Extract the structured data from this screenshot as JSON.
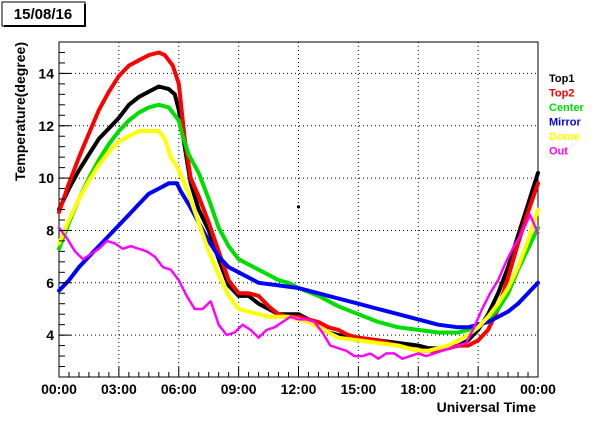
{
  "chart_data": {
    "type": "line",
    "title": "15/08/16",
    "xlabel": "Universal Time",
    "ylabel": "Temperature(degree)",
    "xlim": [
      0,
      24
    ],
    "ylim": [
      2.4,
      15.2
    ],
    "x_ticks": [
      {
        "value": 0,
        "label": "00:00"
      },
      {
        "value": 3,
        "label": "03:00"
      },
      {
        "value": 6,
        "label": "06:00"
      },
      {
        "value": 9,
        "label": "09:00"
      },
      {
        "value": 12,
        "label": "12:00"
      },
      {
        "value": 15,
        "label": "15:00"
      },
      {
        "value": 18,
        "label": "18:00"
      },
      {
        "value": 21,
        "label": "21:00"
      },
      {
        "value": 24,
        "label": "00:00"
      }
    ],
    "y_ticks": [
      {
        "value": 4,
        "label": "4"
      },
      {
        "value": 6,
        "label": "6"
      },
      {
        "value": 8,
        "label": "8"
      },
      {
        "value": 10,
        "label": "10"
      },
      {
        "value": 12,
        "label": "12"
      },
      {
        "value": 14,
        "label": "14"
      }
    ],
    "grid": true,
    "legend_position": "right",
    "series": [
      {
        "name": "Top1",
        "color": "#000000",
        "x": [
          0,
          0.5,
          1,
          1.5,
          2,
          2.5,
          3,
          3.5,
          4,
          4.5,
          5,
          5.5,
          5.8,
          6,
          6.3,
          6.6,
          7,
          7.5,
          8,
          8.5,
          9,
          9.5,
          10,
          10.5,
          11,
          11.5,
          12,
          12.5,
          13,
          13.5,
          14,
          15,
          16,
          17,
          18,
          18.5,
          19,
          19.5,
          20,
          20.5,
          21,
          21.5,
          22,
          22.5,
          23,
          23.5,
          24
        ],
        "y": [
          8.8,
          9.6,
          10.3,
          10.9,
          11.5,
          11.9,
          12.3,
          12.8,
          13.1,
          13.3,
          13.5,
          13.4,
          13.2,
          12.6,
          11.2,
          9.8,
          8.8,
          8.0,
          6.9,
          5.9,
          5.5,
          5.5,
          5.2,
          5.0,
          4.8,
          4.8,
          4.8,
          4.6,
          4.3,
          4.1,
          4.0,
          3.9,
          3.8,
          3.7,
          3.6,
          3.5,
          3.5,
          3.5,
          3.6,
          3.8,
          4.2,
          4.8,
          5.6,
          6.6,
          7.8,
          9.0,
          10.2
        ]
      },
      {
        "name": "Top2",
        "color": "#ff0000",
        "x": [
          0,
          0.5,
          1,
          1.5,
          2,
          2.5,
          3,
          3.5,
          4,
          4.5,
          5,
          5.3,
          5.7,
          6,
          6.3,
          6.6,
          7,
          7.5,
          8,
          8.5,
          9,
          9.5,
          10,
          10.5,
          11,
          11.5,
          12,
          12.5,
          13,
          13.5,
          14,
          14.5,
          15,
          16,
          17,
          17.5,
          18,
          18.5,
          19,
          19.5,
          20,
          20.5,
          21,
          21.5,
          22,
          22.5,
          23,
          23.5,
          24
        ],
        "y": [
          8.7,
          9.8,
          10.8,
          11.7,
          12.6,
          13.3,
          13.9,
          14.3,
          14.5,
          14.7,
          14.8,
          14.7,
          14.3,
          13.6,
          11.5,
          10.0,
          9.3,
          8.3,
          7.2,
          6.1,
          5.6,
          5.6,
          5.5,
          5.1,
          4.8,
          4.7,
          4.7,
          4.6,
          4.5,
          4.3,
          4.2,
          4.0,
          3.9,
          3.8,
          3.6,
          3.5,
          3.4,
          3.4,
          3.4,
          3.5,
          3.6,
          3.6,
          3.8,
          4.2,
          5.0,
          6.2,
          7.5,
          8.7,
          9.8
        ]
      },
      {
        "name": "Center",
        "color": "#00dd00",
        "x": [
          0,
          0.5,
          1,
          1.5,
          2,
          2.5,
          3,
          3.5,
          4,
          4.5,
          5,
          5.5,
          6,
          6.2,
          6.5,
          7,
          7.5,
          8,
          8.5,
          9,
          9.5,
          10,
          10.5,
          11,
          11.5,
          12,
          13,
          14,
          15,
          16,
          17,
          18,
          19,
          20,
          20.5,
          21,
          21.5,
          22,
          22.5,
          23,
          23.5,
          24
        ],
        "y": [
          7.3,
          8.3,
          9.2,
          10.0,
          10.7,
          11.3,
          11.8,
          12.2,
          12.5,
          12.7,
          12.8,
          12.7,
          12.2,
          11.6,
          10.9,
          10.2,
          9.2,
          8.1,
          7.4,
          6.9,
          6.7,
          6.5,
          6.3,
          6.1,
          6.0,
          5.8,
          5.5,
          5.1,
          4.8,
          4.5,
          4.3,
          4.2,
          4.1,
          4.1,
          4.2,
          4.3,
          4.6,
          5.0,
          5.6,
          6.5,
          7.3,
          8.1
        ]
      },
      {
        "name": "Mirror",
        "color": "#0000ff",
        "x": [
          0,
          0.5,
          1,
          1.5,
          2,
          2.5,
          3,
          3.5,
          4,
          4.5,
          5,
          5.5,
          5.9,
          6.1,
          6.5,
          7,
          7.5,
          8,
          8.5,
          9,
          9.5,
          10,
          11,
          12,
          13,
          14,
          15,
          16,
          17,
          18,
          19,
          20,
          20.5,
          21,
          21.5,
          22,
          22.5,
          23,
          23.5,
          24
        ],
        "y": [
          5.7,
          6.1,
          6.6,
          7.0,
          7.4,
          7.8,
          8.2,
          8.6,
          9.0,
          9.4,
          9.6,
          9.8,
          9.8,
          9.5,
          9.0,
          8.3,
          7.6,
          7.0,
          6.6,
          6.4,
          6.2,
          6.0,
          5.9,
          5.8,
          5.6,
          5.4,
          5.2,
          5.0,
          4.8,
          4.6,
          4.4,
          4.3,
          4.3,
          4.4,
          4.5,
          4.7,
          4.9,
          5.2,
          5.6,
          6.0
        ]
      },
      {
        "name": "Dome",
        "color": "#ffff00",
        "x": [
          0,
          0.5,
          1,
          1.5,
          2,
          2.5,
          3,
          3.5,
          4,
          4.5,
          5,
          5.3,
          5.6,
          6,
          6.5,
          7,
          7.5,
          8,
          8.5,
          9,
          9.5,
          10,
          10.5,
          11,
          11.5,
          12,
          12.5,
          13,
          13.5,
          14,
          15,
          16,
          17,
          17.5,
          18,
          18.5,
          19,
          19.5,
          20,
          20.5,
          21,
          21.5,
          22,
          22.5,
          23,
          23.5,
          24
        ],
        "y": [
          7.5,
          8.4,
          9.2,
          9.9,
          10.5,
          11.0,
          11.4,
          11.6,
          11.8,
          11.8,
          11.8,
          11.5,
          10.8,
          10.3,
          9.4,
          8.3,
          7.2,
          6.3,
          5.5,
          5.0,
          4.9,
          4.8,
          4.7,
          4.7,
          4.7,
          4.6,
          4.5,
          4.3,
          4.1,
          3.9,
          3.8,
          3.7,
          3.6,
          3.5,
          3.4,
          3.4,
          3.5,
          3.6,
          3.8,
          4.0,
          4.3,
          4.7,
          5.2,
          5.8,
          6.6,
          7.6,
          8.8
        ]
      },
      {
        "name": "Out",
        "color": "#ff00ff",
        "x": [
          0,
          0.4,
          0.8,
          1.2,
          1.6,
          2,
          2.4,
          2.8,
          3.2,
          3.6,
          4,
          4.4,
          4.8,
          5.2,
          5.6,
          6,
          6.4,
          6.8,
          7.2,
          7.6,
          8,
          8.4,
          8.8,
          9.2,
          9.6,
          10,
          10.4,
          10.8,
          11.2,
          11.6,
          12,
          12.4,
          12.8,
          13.2,
          13.6,
          14,
          14.4,
          14.8,
          15.2,
          15.6,
          16,
          16.4,
          16.8,
          17.2,
          17.6,
          18,
          18.4,
          18.8,
          19.2,
          19.6,
          20,
          20.4,
          20.8,
          21.2,
          21.6,
          22,
          22.4,
          22.8,
          23.2,
          23.6,
          24
        ],
        "y": [
          8.1,
          7.7,
          7.2,
          6.9,
          7.1,
          7.3,
          7.6,
          7.5,
          7.3,
          7.4,
          7.3,
          7.2,
          7.0,
          6.6,
          6.5,
          6.1,
          5.5,
          5.0,
          5.0,
          5.3,
          4.4,
          4.0,
          4.1,
          4.4,
          4.2,
          3.9,
          4.2,
          4.3,
          4.5,
          4.7,
          4.6,
          4.6,
          4.5,
          4.1,
          3.6,
          3.5,
          3.4,
          3.2,
          3.2,
          3.3,
          3.1,
          3.3,
          3.3,
          3.1,
          3.2,
          3.3,
          3.2,
          3.3,
          3.4,
          3.5,
          3.6,
          3.7,
          4.3,
          5.0,
          5.6,
          6.1,
          6.8,
          7.4,
          7.9,
          8.6,
          7.9
        ]
      }
    ],
    "annotations": [
      {
        "x": 12,
        "y": 8.9,
        "color": "#000000"
      }
    ]
  }
}
